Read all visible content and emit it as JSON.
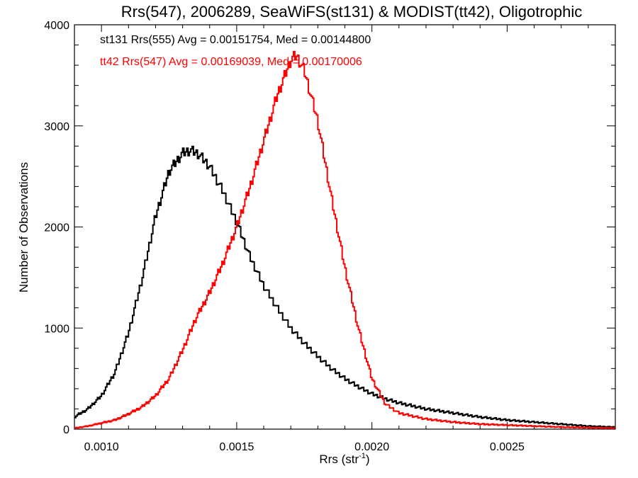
{
  "chart_data": {
    "type": "line",
    "title": "Rrs(547), 2006289, SeaWiFS(st131) & MODIST(tt42), Oligotrophic",
    "xlabel_main": "Rrs (str",
    "xlabel_sup": "-1",
    "xlabel_end": ")",
    "ylabel": "Number of Observations",
    "xlim": [
      0.0009,
      0.0029
    ],
    "ylim": [
      0,
      4000
    ],
    "x_ticks": [
      {
        "value": 0.001,
        "label": "0.0010"
      },
      {
        "value": 0.0015,
        "label": "0.0015"
      },
      {
        "value": 0.002,
        "label": "0.0020"
      },
      {
        "value": 0.0025,
        "label": "0.0025"
      }
    ],
    "y_ticks": [
      {
        "value": 0,
        "label": "0"
      },
      {
        "value": 1000,
        "label": "1000"
      },
      {
        "value": 2000,
        "label": "2000"
      },
      {
        "value": 3000,
        "label": "3000"
      },
      {
        "value": 4000,
        "label": "4000"
      }
    ],
    "legend_position": "top-left",
    "series": [
      {
        "name": "st131",
        "legend_text": "st131 Rrs(555) Avg = 0.00151754, Med = 0.00144800",
        "color": "#000000",
        "x": [
          0.0009,
          0.00095,
          0.001,
          0.00105,
          0.0011,
          0.00115,
          0.0012,
          0.00125,
          0.0013,
          0.00133,
          0.00136,
          0.0014,
          0.00145,
          0.0015,
          0.00155,
          0.0016,
          0.00165,
          0.0017,
          0.00175,
          0.0018,
          0.00185,
          0.0019,
          0.00195,
          0.002,
          0.00205,
          0.0021,
          0.00215,
          0.0022,
          0.0023,
          0.0024,
          0.0025,
          0.0026,
          0.0027,
          0.0028,
          0.0029
        ],
        "y": [
          120,
          200,
          330,
          560,
          950,
          1480,
          2100,
          2550,
          2730,
          2760,
          2720,
          2600,
          2350,
          2050,
          1700,
          1420,
          1200,
          1000,
          850,
          720,
          600,
          500,
          420,
          350,
          300,
          260,
          230,
          200,
          160,
          120,
          90,
          70,
          50,
          30,
          20
        ]
      },
      {
        "name": "tt42",
        "legend_text": "tt42 Rrs(547) Avg = 0.00169039, Med = 0.00170006",
        "color": "#ff0000",
        "x": [
          0.0009,
          0.00095,
          0.001,
          0.00105,
          0.0011,
          0.00115,
          0.0012,
          0.00125,
          0.0013,
          0.00135,
          0.0014,
          0.00145,
          0.0015,
          0.00155,
          0.0016,
          0.00165,
          0.0017,
          0.00172,
          0.00175,
          0.0018,
          0.00185,
          0.0019,
          0.00195,
          0.002,
          0.00205,
          0.0021,
          0.0022,
          0.0023,
          0.0024,
          0.0025,
          0.0026,
          0.0027,
          0.0028,
          0.0029
        ],
        "y": [
          10,
          30,
          60,
          90,
          150,
          220,
          330,
          500,
          780,
          1100,
          1350,
          1650,
          2000,
          2400,
          2850,
          3300,
          3650,
          3700,
          3550,
          3050,
          2300,
          1600,
          1000,
          500,
          250,
          160,
          100,
          70,
          50,
          40,
          30,
          20,
          15,
          10
        ]
      }
    ]
  }
}
